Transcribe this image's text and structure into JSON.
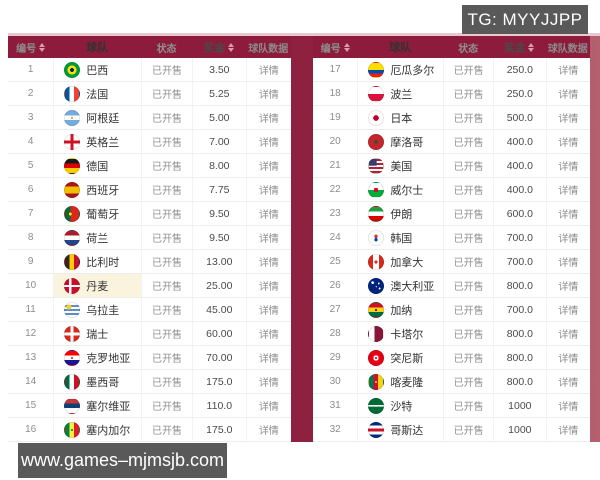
{
  "page": {
    "tg_label": "TG: MYYJJPP",
    "watermark": "www.games–mjmsjb.com"
  },
  "colors": {
    "header_bg": "#8C1B3C",
    "backdrop_strip": "#8E2140",
    "row_highlight": "#FAF3DD",
    "watermark_bg": "#595959"
  },
  "table": {
    "headers": {
      "id": "编号",
      "team": "球队",
      "status": "状态",
      "prize": "奖金",
      "data": "球队数据"
    }
  },
  "left_table": {
    "rows": [
      {
        "id": "1",
        "team": "巴西",
        "flag": "brazil",
        "status": "已开售",
        "prize": "3.50",
        "detail": "详情",
        "highlight": false
      },
      {
        "id": "2",
        "team": "法国",
        "flag": "france",
        "status": "已开售",
        "prize": "5.25",
        "detail": "详情",
        "highlight": false
      },
      {
        "id": "3",
        "team": "阿根廷",
        "flag": "argentina",
        "status": "已开售",
        "prize": "5.00",
        "detail": "详情",
        "highlight": false
      },
      {
        "id": "4",
        "team": "英格兰",
        "flag": "england",
        "status": "已开售",
        "prize": "7.00",
        "detail": "详情",
        "highlight": false
      },
      {
        "id": "5",
        "team": "德国",
        "flag": "germany",
        "status": "已开售",
        "prize": "8.00",
        "detail": "详情",
        "highlight": false
      },
      {
        "id": "6",
        "team": "西班牙",
        "flag": "spain",
        "status": "已开售",
        "prize": "7.75",
        "detail": "详情",
        "highlight": false
      },
      {
        "id": "7",
        "team": "葡萄牙",
        "flag": "portugal",
        "status": "已开售",
        "prize": "9.50",
        "detail": "详情",
        "highlight": false
      },
      {
        "id": "8",
        "team": "荷兰",
        "flag": "netherlands",
        "status": "已开售",
        "prize": "9.50",
        "detail": "详情",
        "highlight": false
      },
      {
        "id": "9",
        "team": "比利时",
        "flag": "belgium",
        "status": "已开售",
        "prize": "13.00",
        "detail": "详情",
        "highlight": false
      },
      {
        "id": "10",
        "team": "丹麦",
        "flag": "denmark",
        "status": "已开售",
        "prize": "25.00",
        "detail": "详情",
        "highlight": true
      },
      {
        "id": "11",
        "team": "乌拉圭",
        "flag": "uruguay",
        "status": "已开售",
        "prize": "45.00",
        "detail": "详情",
        "highlight": false
      },
      {
        "id": "12",
        "team": "瑞士",
        "flag": "switzerland",
        "status": "已开售",
        "prize": "60.00",
        "detail": "详情",
        "highlight": false
      },
      {
        "id": "13",
        "team": "克罗地亚",
        "flag": "croatia",
        "status": "已开售",
        "prize": "70.00",
        "detail": "详情",
        "highlight": false
      },
      {
        "id": "14",
        "team": "墨西哥",
        "flag": "mexico",
        "status": "已开售",
        "prize": "175.0",
        "detail": "详情",
        "highlight": false
      },
      {
        "id": "15",
        "team": "塞尔维亚",
        "flag": "serbia",
        "status": "已开售",
        "prize": "110.0",
        "detail": "详情",
        "highlight": false
      },
      {
        "id": "16",
        "team": "塞内加尔",
        "flag": "senegal",
        "status": "已开售",
        "prize": "175.0",
        "detail": "详情",
        "highlight": false
      }
    ]
  },
  "right_table": {
    "rows": [
      {
        "id": "17",
        "team": "厄瓜多尔",
        "flag": "ecuador",
        "status": "已开售",
        "prize": "250.0",
        "detail": "详情",
        "highlight": false
      },
      {
        "id": "18",
        "team": "波兰",
        "flag": "poland",
        "status": "已开售",
        "prize": "250.0",
        "detail": "详情",
        "highlight": false
      },
      {
        "id": "19",
        "team": "日本",
        "flag": "japan",
        "status": "已开售",
        "prize": "500.0",
        "detail": "详情",
        "highlight": false
      },
      {
        "id": "20",
        "team": "摩洛哥",
        "flag": "morocco",
        "status": "已开售",
        "prize": "400.0",
        "detail": "详情",
        "highlight": false
      },
      {
        "id": "21",
        "team": "美国",
        "flag": "usa",
        "status": "已开售",
        "prize": "400.0",
        "detail": "详情",
        "highlight": false
      },
      {
        "id": "22",
        "team": "威尔士",
        "flag": "wales",
        "status": "已开售",
        "prize": "400.0",
        "detail": "详情",
        "highlight": false
      },
      {
        "id": "23",
        "team": "伊朗",
        "flag": "iran",
        "status": "已开售",
        "prize": "600.0",
        "detail": "详情",
        "highlight": false
      },
      {
        "id": "24",
        "team": "韩国",
        "flag": "southkorea",
        "status": "已开售",
        "prize": "700.0",
        "detail": "详情",
        "highlight": false
      },
      {
        "id": "25",
        "team": "加拿大",
        "flag": "canada",
        "status": "已开售",
        "prize": "700.0",
        "detail": "详情",
        "highlight": false
      },
      {
        "id": "26",
        "team": "澳大利亚",
        "flag": "australia",
        "status": "已开售",
        "prize": "800.0",
        "detail": "详情",
        "highlight": false
      },
      {
        "id": "27",
        "team": "加纳",
        "flag": "ghana",
        "status": "已开售",
        "prize": "700.0",
        "detail": "详情",
        "highlight": false
      },
      {
        "id": "28",
        "team": "卡塔尔",
        "flag": "qatar",
        "status": "已开售",
        "prize": "800.0",
        "detail": "详情",
        "highlight": false
      },
      {
        "id": "29",
        "team": "突尼斯",
        "flag": "tunisia",
        "status": "已开售",
        "prize": "800.0",
        "detail": "详情",
        "highlight": false
      },
      {
        "id": "30",
        "team": "喀麦隆",
        "flag": "cameroon",
        "status": "已开售",
        "prize": "800.0",
        "detail": "详情",
        "highlight": false
      },
      {
        "id": "31",
        "team": "沙特",
        "flag": "saudi",
        "status": "已开售",
        "prize": "1000",
        "detail": "详情",
        "highlight": false
      },
      {
        "id": "32",
        "team": "哥斯达",
        "flag": "costarica",
        "status": "已开售",
        "prize": "1000",
        "detail": "详情",
        "highlight": false
      }
    ]
  }
}
